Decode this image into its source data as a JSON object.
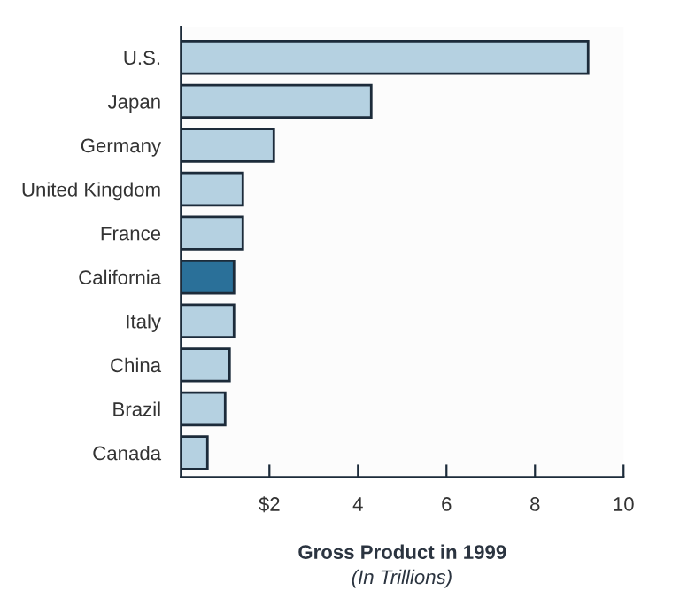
{
  "chart_data": {
    "type": "bar",
    "orientation": "horizontal",
    "categories": [
      "U.S.",
      "Japan",
      "Germany",
      "United Kingdom",
      "France",
      "California",
      "Italy",
      "China",
      "Brazil",
      "Canada"
    ],
    "values": [
      9.2,
      4.3,
      2.1,
      1.4,
      1.4,
      1.2,
      1.2,
      1.1,
      1.0,
      0.6
    ],
    "colors": [
      "#b5d1e1",
      "#b5d1e1",
      "#b5d1e1",
      "#b5d1e1",
      "#b5d1e1",
      "#2a7099",
      "#b5d1e1",
      "#b5d1e1",
      "#b5d1e1",
      "#b5d1e1"
    ],
    "xlim": [
      0,
      10
    ],
    "xticks": [
      {
        "value": 2,
        "label": "$2"
      },
      4,
      6,
      8,
      10
    ],
    "xlabel": "Gross Product in 1999",
    "annotations": [
      "(In Trillions)"
    ],
    "grid": false,
    "legend": false
  }
}
